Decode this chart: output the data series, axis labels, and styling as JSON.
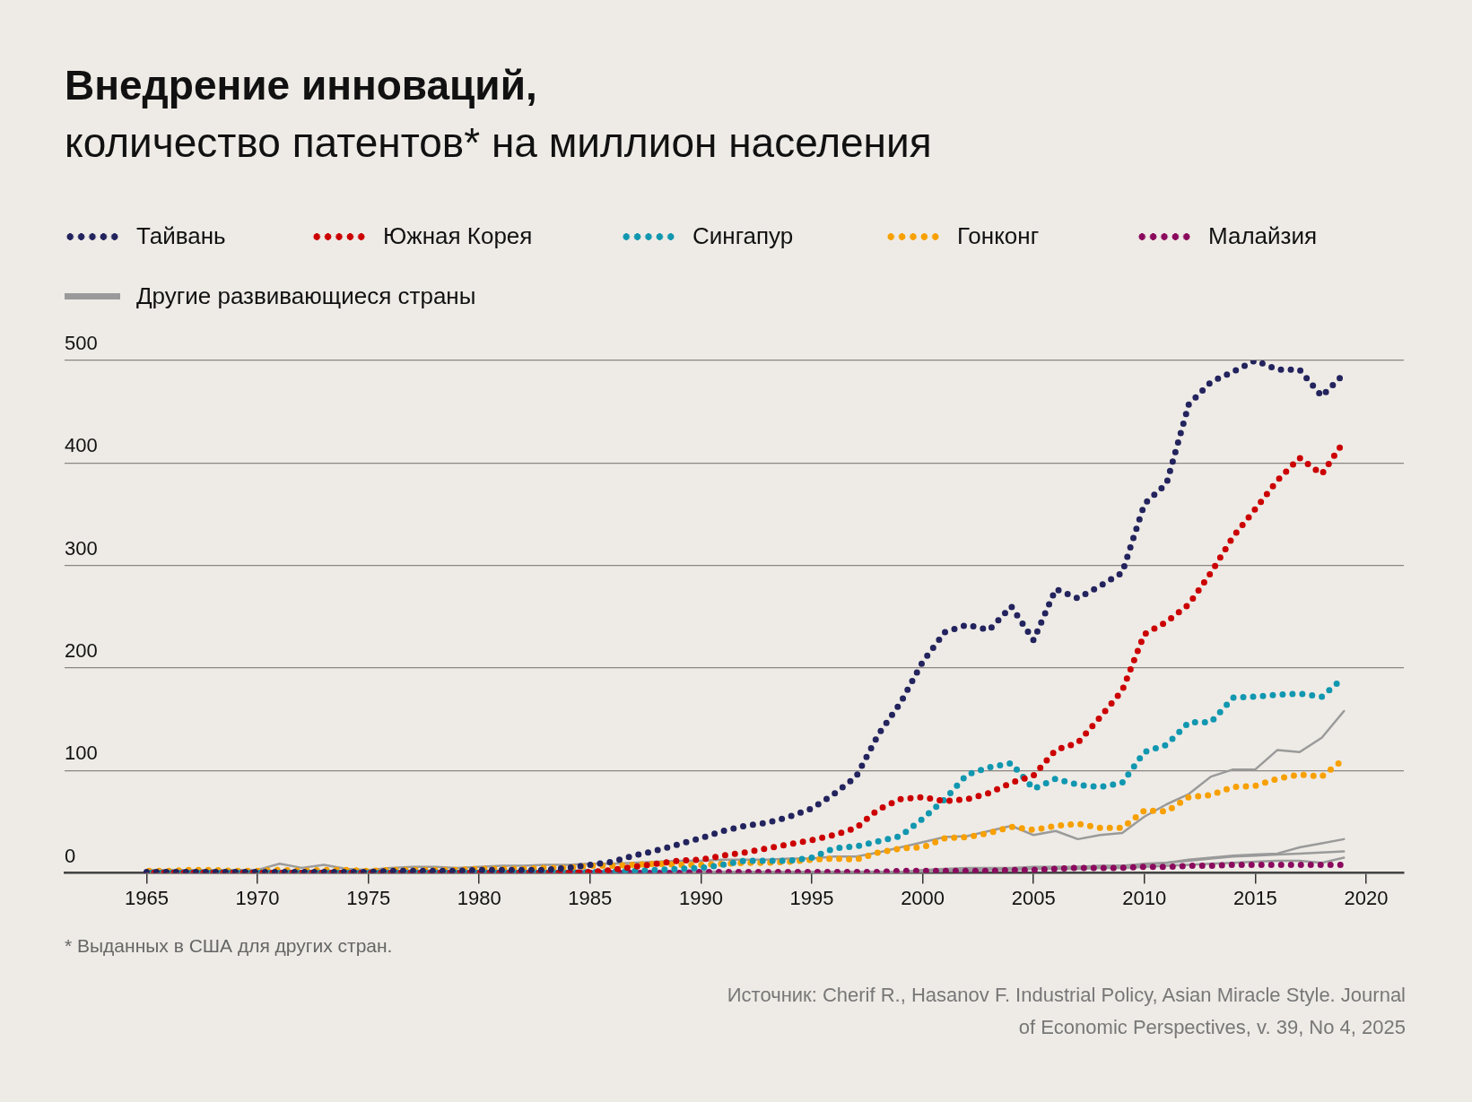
{
  "chart_data": {
    "type": "line",
    "title": "Внедрение инноваций,",
    "subtitle": "количество патентов* на миллион населения",
    "x": [
      1965,
      1966,
      1967,
      1968,
      1969,
      1970,
      1971,
      1972,
      1973,
      1974,
      1975,
      1976,
      1977,
      1978,
      1979,
      1980,
      1981,
      1982,
      1983,
      1984,
      1985,
      1986,
      1987,
      1988,
      1989,
      1990,
      1991,
      1992,
      1993,
      1994,
      1995,
      1996,
      1997,
      1998,
      1999,
      2000,
      2001,
      2002,
      2003,
      2004,
      2005,
      2006,
      2007,
      2008,
      2009,
      2010,
      2011,
      2012,
      2013,
      2014,
      2015,
      2016,
      2017,
      2018,
      2019
    ],
    "series": [
      {
        "name": "Тайвань",
        "color": "#23235e",
        "line_style": "dotted",
        "values": [
          1,
          1,
          1,
          1,
          1,
          1,
          1,
          1,
          1,
          1,
          1,
          2,
          2,
          2,
          2,
          3,
          3,
          3,
          3,
          5,
          8,
          11,
          17,
          22,
          28,
          34,
          41,
          46,
          49,
          55,
          63,
          77,
          94,
          135,
          166,
          206,
          235,
          242,
          237,
          260,
          227,
          277,
          268,
          280,
          293,
          360,
          380,
          457,
          479,
          489,
          500,
          491,
          491,
          465,
          487
        ]
      },
      {
        "name": "Южная Корея",
        "color": "#cc0000",
        "line_style": "dotted",
        "values": [
          0,
          0,
          0,
          0,
          0,
          0,
          0,
          0,
          0,
          0,
          0,
          0,
          0,
          0,
          0,
          0,
          0,
          0,
          0,
          0,
          1,
          3,
          6,
          9,
          12,
          13,
          17,
          20,
          24,
          28,
          32,
          37,
          44,
          62,
          72,
          74,
          70,
          72,
          78,
          88,
          95,
          120,
          127,
          152,
          178,
          233,
          245,
          262,
          293,
          328,
          355,
          383,
          405,
          389,
          421
        ]
      },
      {
        "name": "Сингапур",
        "color": "#1197b0",
        "line_style": "dotted",
        "values": [
          0,
          0,
          0,
          0,
          0,
          0,
          0,
          0,
          0,
          0,
          0,
          0,
          0,
          0,
          0,
          0,
          0,
          0,
          0,
          0,
          1,
          1,
          2,
          3,
          4,
          5,
          8,
          12,
          12,
          12,
          15,
          24,
          26,
          31,
          36,
          53,
          72,
          96,
          103,
          107,
          82,
          92,
          86,
          84,
          88,
          118,
          125,
          147,
          147,
          171,
          172,
          174,
          175,
          172,
          191
        ]
      },
      {
        "name": "Гонконг",
        "color": "#f7a000",
        "line_style": "dotted",
        "values": [
          2,
          2,
          3,
          3,
          2,
          2,
          3,
          2,
          3,
          3,
          2,
          3,
          3,
          3,
          3,
          4,
          4,
          4,
          5,
          5,
          7,
          7,
          8,
          9,
          8,
          8,
          9,
          10,
          10,
          11,
          13,
          14,
          13,
          20,
          24,
          25,
          34,
          35,
          39,
          45,
          42,
          46,
          48,
          44,
          44,
          61,
          60,
          74,
          76,
          84,
          85,
          92,
          96,
          94,
          111
        ]
      },
      {
        "name": "Малайзия",
        "color": "#8b0a5e",
        "line_style": "dotted",
        "values": [
          0,
          0,
          0,
          0,
          0,
          0,
          0,
          0,
          0,
          0,
          0,
          0,
          0,
          0,
          0,
          0,
          0,
          0,
          0,
          0,
          0,
          0,
          0,
          0,
          0,
          1,
          1,
          1,
          1,
          1,
          1,
          1,
          1,
          1,
          2,
          2,
          2,
          2,
          2,
          3,
          3,
          4,
          5,
          5,
          5,
          6,
          6,
          7,
          7,
          8,
          8,
          8,
          8,
          8,
          8
        ]
      },
      {
        "name": "Другие развивающиеся страны",
        "color": "#9a9a9a",
        "line_style": "solid",
        "values": [
          3,
          3,
          3,
          3,
          3,
          3,
          9,
          5,
          8,
          4,
          3,
          5,
          6,
          6,
          5,
          6,
          7,
          7,
          8,
          8,
          9,
          9,
          10,
          11,
          12,
          12,
          13,
          13,
          13,
          14,
          14,
          16,
          16,
          20,
          25,
          30,
          35,
          36,
          41,
          46,
          37,
          41,
          33,
          37,
          39,
          55,
          67,
          77,
          94,
          101,
          101,
          120,
          118,
          132,
          158
        ]
      },
      {
        "color": "#9a9a9a",
        "line_style": "solid",
        "values": [
          1,
          1,
          1,
          1,
          1,
          1,
          1,
          1,
          1,
          1,
          1,
          1,
          1,
          1,
          1,
          1,
          1,
          1,
          1,
          1,
          1,
          1,
          1,
          1,
          1,
          1,
          1,
          1,
          1,
          1,
          1,
          1,
          1,
          1,
          1,
          3,
          4,
          5,
          5,
          5,
          6,
          6,
          6,
          7,
          7,
          9,
          10,
          13,
          15,
          17,
          18,
          19,
          25,
          29,
          33
        ]
      },
      {
        "color": "#9a9a9a",
        "line_style": "solid",
        "values": [
          1,
          1,
          1,
          1,
          1,
          1,
          1,
          1,
          1,
          1,
          1,
          1,
          1,
          1,
          1,
          1,
          1,
          1,
          1,
          1,
          1,
          1,
          1,
          1,
          1,
          1,
          1,
          1,
          1,
          1,
          1,
          1,
          1,
          1,
          1,
          2,
          3,
          3,
          4,
          4,
          5,
          5,
          6,
          6,
          7,
          8,
          10,
          12,
          14,
          16,
          17,
          18,
          19,
          20,
          21
        ]
      },
      {
        "color": "#9a9a9a",
        "line_style": "solid",
        "values": [
          1,
          1,
          1,
          1,
          1,
          1,
          1,
          1,
          1,
          1,
          1,
          1,
          1,
          1,
          1,
          1,
          1,
          1,
          1,
          1,
          1,
          1,
          1,
          1,
          1,
          1,
          1,
          1,
          1,
          1,
          1,
          1,
          1,
          1,
          1,
          1,
          2,
          2,
          3,
          3,
          4,
          4,
          4,
          5,
          5,
          6,
          7,
          8,
          9,
          10,
          11,
          12,
          12,
          10,
          15
        ]
      }
    ],
    "xlim": [
      1961.3,
      2021.7
    ],
    "ylim": [
      0,
      500
    ],
    "xticks": [
      1965,
      1970,
      1975,
      1980,
      1985,
      1990,
      1995,
      2000,
      2005,
      2010,
      2015,
      2020
    ],
    "yticks": [
      0,
      100,
      200,
      300,
      400,
      500
    ],
    "grid": "y",
    "legend": "top",
    "annotations": [
      "* Выданных в США для других стран.",
      "Источник: Cherif R., Hasanov F. Industrial Policy, Asian Miracle Style. Journal of Economic Perspectives, v. 39, No 4, 2025"
    ]
  }
}
